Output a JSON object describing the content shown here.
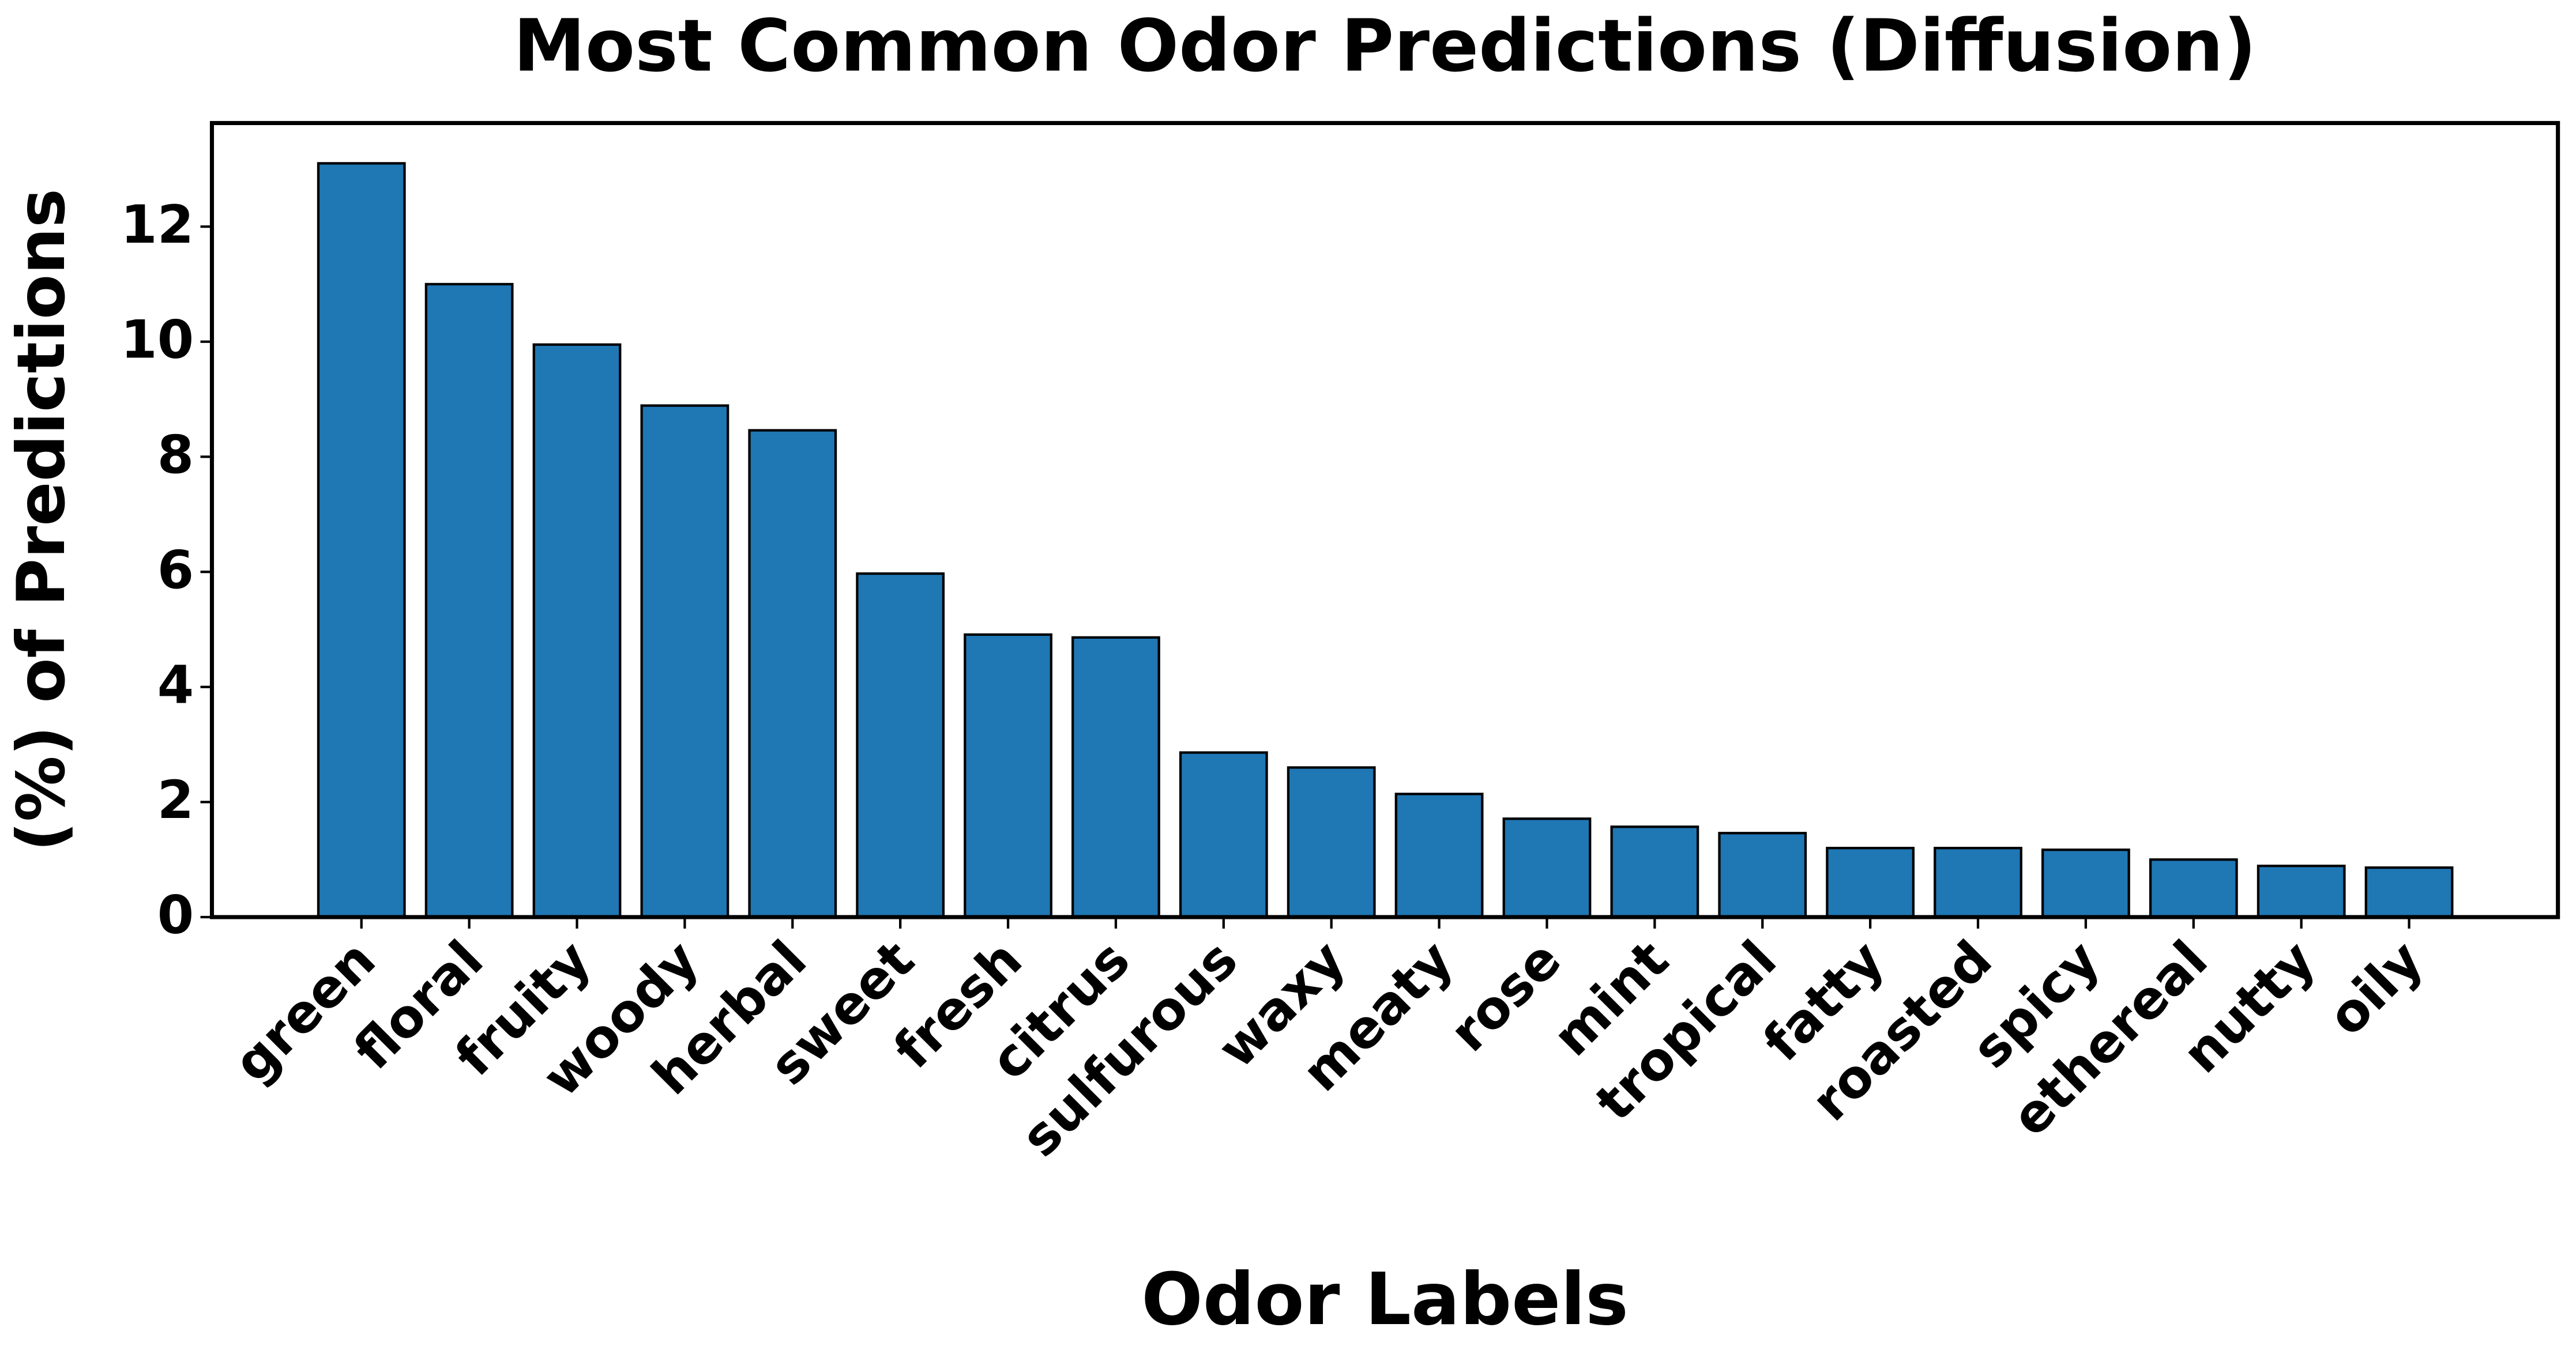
{
  "chart_data": {
    "type": "bar",
    "title": "Most Common Odor Predictions (Diffusion)",
    "x_label": "Odor Labels",
    "y_label": "(%) of Predictions",
    "categories": [
      "green",
      "floral",
      "fruity",
      "woody",
      "herbal",
      "sweet",
      "fresh",
      "citrus",
      "sulfurous",
      "waxy",
      "meaty",
      "rose",
      "mint",
      "tropical",
      "fatty",
      "roasted",
      "spicy",
      "ethereal",
      "nutty",
      "oily"
    ],
    "values": [
      13.1,
      11.0,
      9.95,
      8.89,
      8.46,
      5.97,
      4.91,
      4.86,
      2.86,
      2.6,
      2.14,
      1.71,
      1.57,
      1.46,
      1.2,
      1.2,
      1.17,
      1.0,
      0.89,
      0.86
    ],
    "color": "#1f77b4",
    "ylim": [
      0,
      13.8
    ],
    "yticks": [
      0,
      2,
      4,
      6,
      8,
      10,
      12
    ],
    "grid": false
  }
}
